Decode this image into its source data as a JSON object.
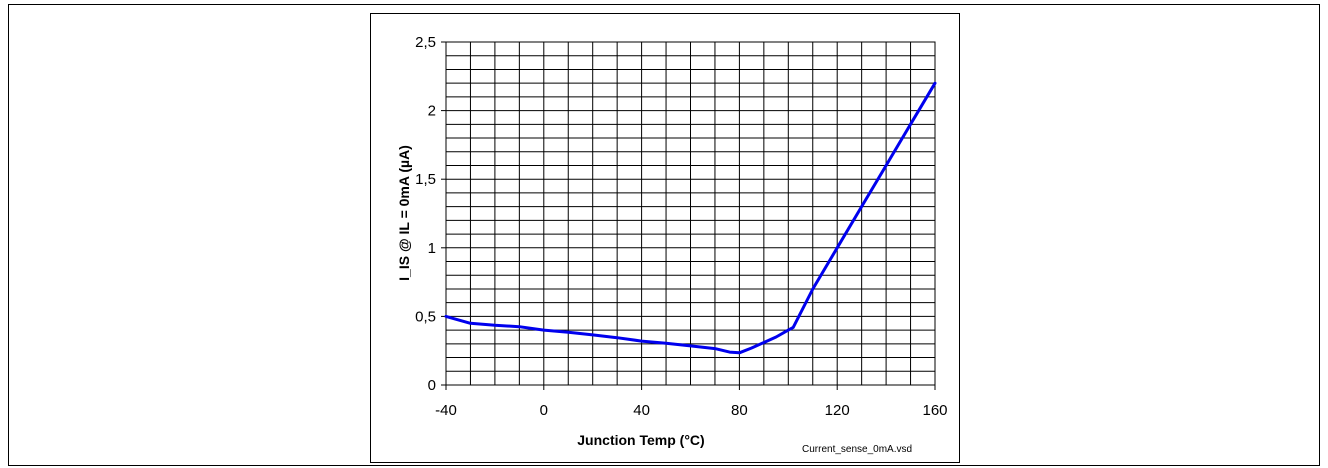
{
  "chart_data": {
    "type": "line",
    "title": "",
    "xlabel": "Junction Temp (°C)",
    "ylabel": "I_IS @ IL = 0mA  (µA)",
    "xlim": [
      -40,
      160
    ],
    "ylim": [
      0,
      2.5
    ],
    "x_ticks": [
      -40,
      0,
      40,
      80,
      120,
      160
    ],
    "x_tick_labels": [
      "-40",
      "0",
      "40",
      "80",
      "120",
      "160"
    ],
    "y_ticks": [
      0,
      0.5,
      1,
      1.5,
      2,
      2.5
    ],
    "y_tick_labels": [
      "0",
      "0,5",
      "1",
      "1,5",
      "2",
      "2,5"
    ],
    "grid": true,
    "line_color": "#0000ee",
    "series": [
      {
        "x": [
          -40,
          -30,
          -20,
          -10,
          0,
          10,
          20,
          30,
          40,
          50,
          60,
          70,
          76,
          80,
          85,
          90,
          95,
          100,
          102,
          110,
          120,
          130,
          140,
          150,
          160
        ],
        "y": [
          0.5,
          0.45,
          0.435,
          0.425,
          0.4,
          0.385,
          0.365,
          0.345,
          0.32,
          0.305,
          0.285,
          0.265,
          0.24,
          0.235,
          0.27,
          0.31,
          0.35,
          0.4,
          0.42,
          0.7,
          1.0,
          1.3,
          1.6,
          1.9,
          2.2
        ]
      }
    ],
    "annotation": "Current_sense_0mA.vsd"
  }
}
